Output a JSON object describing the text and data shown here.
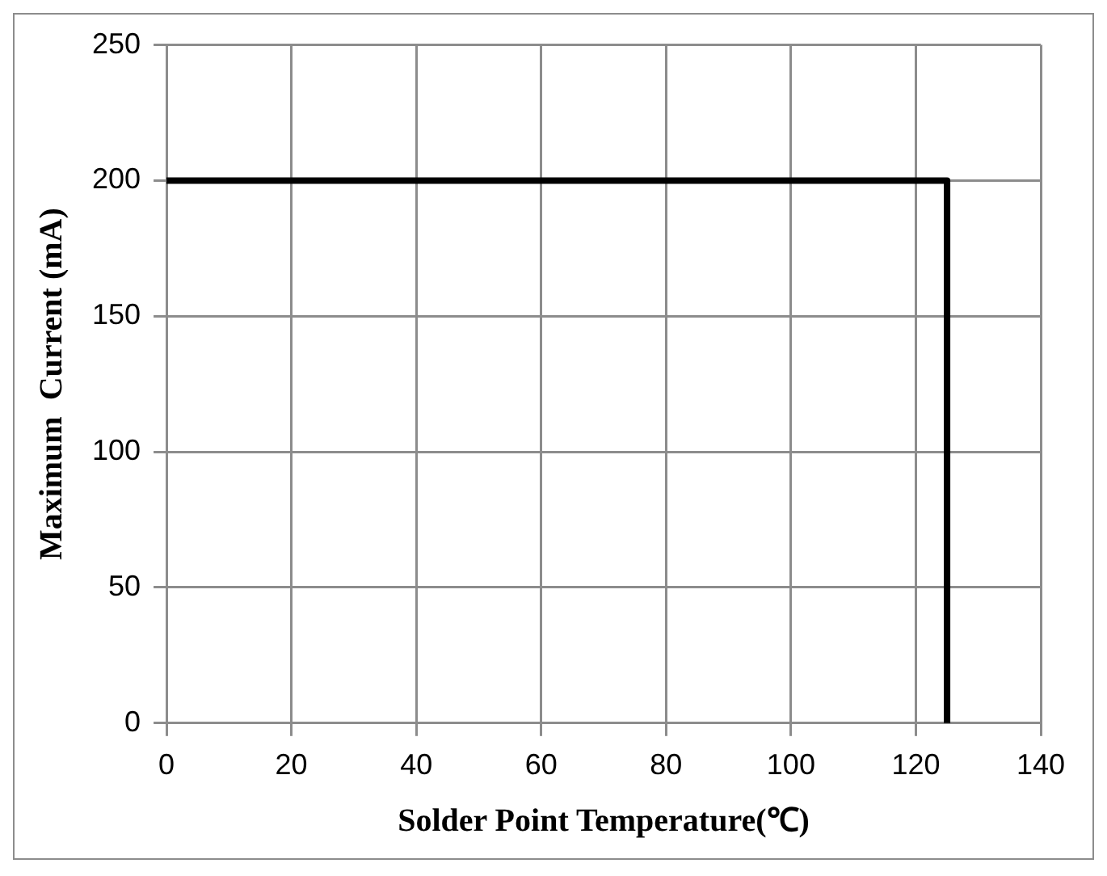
{
  "chart_data": {
    "type": "step",
    "xlabel": "Solder Point Temperature(℃)",
    "ylabel": "Maximum  Current (mA)",
    "x": [
      0,
      125
    ],
    "series": [
      {
        "color": "#000000",
        "values": [
          200,
          0
        ]
      }
    ],
    "xlim": [
      0,
      140
    ],
    "xticks": [
      0,
      20,
      40,
      60,
      80,
      100,
      120,
      140
    ],
    "ylim": [
      0,
      250
    ],
    "yticks": [
      0,
      50,
      100,
      150,
      200,
      250
    ],
    "grid": true,
    "legend": false,
    "marker": "none",
    "line_style": "solid"
  }
}
